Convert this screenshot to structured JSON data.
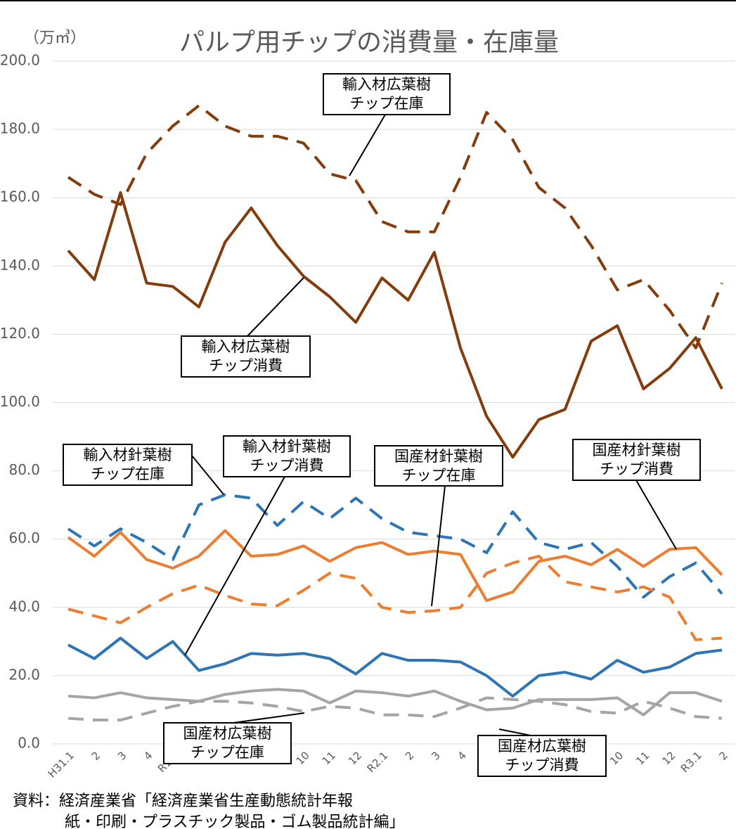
{
  "chart_data": {
    "type": "line",
    "title": "パルプ用チップの消費量・在庫量",
    "unit_label": "（万㎥）",
    "categories": [
      "H31.1",
      "2",
      "3",
      "4",
      "R1.5",
      "6",
      "7",
      "8",
      "9",
      "10",
      "11",
      "12",
      "R2.1",
      "2",
      "3",
      "4",
      "5",
      "6",
      "7",
      "8",
      "9",
      "10",
      "11",
      "12",
      "R3.1",
      "2"
    ],
    "ylim": [
      0,
      200
    ],
    "yticks": [
      {
        "value": 0,
        "label": "0.0"
      },
      {
        "value": 20,
        "label": "20.0"
      },
      {
        "value": 40,
        "label": "40.0"
      },
      {
        "value": 60,
        "label": "60.0"
      },
      {
        "value": 80,
        "label": "80.0"
      },
      {
        "value": 100,
        "label": "100.0"
      },
      {
        "value": 120,
        "label": "120.0"
      },
      {
        "value": 140,
        "label": "140.0"
      },
      {
        "value": 160,
        "label": "160.0"
      },
      {
        "value": 180,
        "label": "180.0"
      },
      {
        "value": 200,
        "label": "200.0"
      }
    ],
    "grid": true,
    "series": [
      {
        "color": "#843c0c",
        "dashed": true,
        "values": [
          166,
          161,
          158,
          173,
          181,
          187,
          181,
          178,
          178,
          176,
          167,
          165,
          153,
          150,
          150,
          166,
          185,
          177,
          163,
          157,
          146,
          133,
          136,
          127,
          116,
          135
        ]
      },
      {
        "color": "#843c0c",
        "dashed": false,
        "values": [
          144.5,
          136,
          161.5,
          135,
          134,
          128,
          147,
          157,
          146,
          137,
          131,
          123.5,
          136.5,
          130,
          144,
          116,
          96,
          84,
          95,
          98,
          118,
          122.5,
          104,
          110,
          119,
          104
        ]
      },
      {
        "color": "#2e75b6",
        "dashed": true,
        "values": [
          63,
          58,
          63,
          59,
          54,
          70,
          73,
          72,
          64,
          71,
          66,
          72,
          66,
          62,
          61,
          60,
          56,
          68,
          59,
          57,
          59,
          52,
          43,
          49,
          53,
          44
        ]
      },
      {
        "color": "#2e75b6",
        "dashed": false,
        "values": [
          29,
          25,
          31,
          25,
          30,
          21.5,
          23.5,
          26.5,
          26,
          26.5,
          25,
          20.5,
          26.5,
          24.5,
          24.5,
          24,
          20,
          14,
          20,
          21,
          19,
          24.5,
          21,
          22.5,
          26.5,
          27.5
        ]
      },
      {
        "color": "#ed7d31",
        "dashed": true,
        "values": [
          39.5,
          37.5,
          35.5,
          40,
          44,
          46.5,
          43.5,
          41,
          40.5,
          45,
          50,
          48.5,
          40,
          38.5,
          39,
          40,
          50,
          53,
          55,
          47.5,
          46,
          44.5,
          46,
          43,
          30.5,
          31
        ]
      },
      {
        "color": "#ed7d31",
        "dashed": false,
        "values": [
          60.5,
          55,
          62,
          54,
          51.5,
          55,
          62.5,
          55,
          55.5,
          58,
          53.5,
          57.5,
          59,
          55.5,
          56.5,
          55.5,
          42,
          44.5,
          53.5,
          55,
          52.5,
          57,
          52,
          57,
          57.5,
          49.5
        ]
      },
      {
        "color": "#a5a5a5",
        "dashed": true,
        "values": [
          7.5,
          7,
          7,
          9,
          11,
          12.5,
          12.5,
          12,
          11,
          9.5,
          11,
          10.5,
          8.5,
          8.5,
          8,
          10.5,
          13.5,
          13,
          12.5,
          11.5,
          9.5,
          9,
          12.5,
          10.5,
          8,
          7.5
        ]
      },
      {
        "color": "#a5a5a5",
        "dashed": false,
        "values": [
          14,
          13.5,
          15,
          13.5,
          13,
          12.5,
          14.5,
          15.5,
          16,
          15.5,
          12,
          15.5,
          15,
          14,
          15.5,
          12.5,
          10,
          10.5,
          13,
          13,
          13,
          13.5,
          8.5,
          15,
          15,
          12.5
        ]
      }
    ],
    "annotations": [
      {
        "lines": [
          "輸入材広葉樹",
          "チップ在庫"
        ]
      },
      {
        "lines": [
          "輸入材広葉樹",
          "チップ消費"
        ]
      },
      {
        "lines": [
          "輸入材針葉樹",
          "チップ在庫"
        ]
      },
      {
        "lines": [
          "輸入材針葉樹",
          "チップ消費"
        ]
      },
      {
        "lines": [
          "国産材針葉樹",
          "チップ在庫"
        ]
      },
      {
        "lines": [
          "国産材針葉樹",
          "チップ消費"
        ]
      },
      {
        "lines": [
          "国産材広葉樹",
          "チップ在庫"
        ]
      },
      {
        "lines": [
          "国産材広葉樹",
          "チップ消費"
        ]
      }
    ],
    "source": [
      "資料：経済産業省「経済産業省生産動態統計年報",
      "紙・印刷・プラスチック製品・ゴム製品統計編」"
    ]
  }
}
